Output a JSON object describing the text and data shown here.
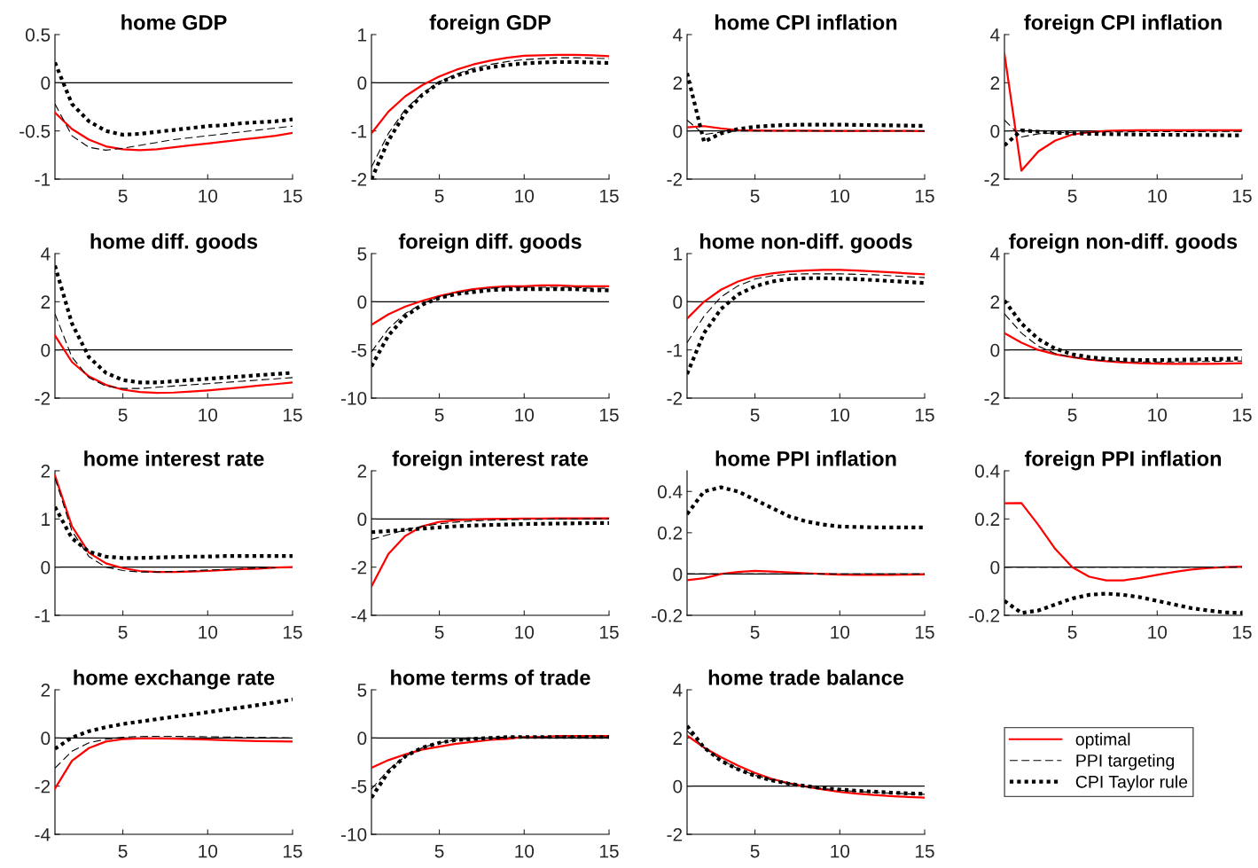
{
  "chart_data": [
    {
      "type": "line",
      "title": "home GDP",
      "x": [
        1,
        2,
        3,
        4,
        5,
        6,
        7,
        8,
        9,
        10,
        11,
        12,
        13,
        14,
        15
      ],
      "xlim": [
        1,
        15
      ],
      "xticks": [
        5,
        10,
        15
      ],
      "ylim": [
        -1,
        0.5
      ],
      "yticks": [
        -1,
        -0.5,
        0,
        0.5
      ],
      "grid": false,
      "legend": false,
      "ref_lines": [
        {
          "axis": "y",
          "value": 0,
          "color": "#000000"
        }
      ],
      "series": [
        {
          "color": "#ff0000",
          "line_style": "solid",
          "values": [
            -0.31,
            -0.48,
            -0.59,
            -0.66,
            -0.69,
            -0.7,
            -0.69,
            -0.67,
            -0.65,
            -0.63,
            -0.61,
            -0.59,
            -0.57,
            -0.55,
            -0.52
          ]
        },
        {
          "color": "#000000",
          "line_style": "dashed",
          "values": [
            -0.22,
            -0.55,
            -0.67,
            -0.7,
            -0.68,
            -0.65,
            -0.62,
            -0.59,
            -0.57,
            -0.55,
            -0.53,
            -0.51,
            -0.49,
            -0.47,
            -0.45
          ]
        },
        {
          "color": "#000000",
          "line_style": "dotted",
          "values": [
            0.21,
            -0.22,
            -0.4,
            -0.5,
            -0.54,
            -0.53,
            -0.51,
            -0.49,
            -0.47,
            -0.45,
            -0.44,
            -0.42,
            -0.41,
            -0.4,
            -0.38
          ]
        }
      ]
    },
    {
      "type": "line",
      "title": "foreign GDP",
      "x": [
        1,
        2,
        3,
        4,
        5,
        6,
        7,
        8,
        9,
        10,
        11,
        12,
        13,
        14,
        15
      ],
      "xlim": [
        1,
        15
      ],
      "xticks": [
        5,
        10,
        15
      ],
      "ylim": [
        -2,
        1
      ],
      "yticks": [
        -2,
        -1,
        0,
        1
      ],
      "grid": false,
      "legend": false,
      "ref_lines": [
        {
          "axis": "y",
          "value": 0,
          "color": "#000000"
        }
      ],
      "series": [
        {
          "color": "#ff0000",
          "line_style": "solid",
          "values": [
            -1.05,
            -0.6,
            -0.28,
            -0.05,
            0.13,
            0.27,
            0.38,
            0.46,
            0.52,
            0.56,
            0.57,
            0.58,
            0.58,
            0.57,
            0.55
          ]
        },
        {
          "color": "#000000",
          "line_style": "dashed",
          "values": [
            -1.75,
            -1.05,
            -0.55,
            -0.22,
            0.02,
            0.18,
            0.3,
            0.38,
            0.44,
            0.48,
            0.5,
            0.52,
            0.52,
            0.51,
            0.5
          ]
        },
        {
          "color": "#000000",
          "line_style": "dotted",
          "values": [
            -2.0,
            -1.2,
            -0.62,
            -0.25,
            0.0,
            0.15,
            0.25,
            0.32,
            0.37,
            0.4,
            0.42,
            0.43,
            0.43,
            0.42,
            0.41
          ]
        }
      ]
    },
    {
      "type": "line",
      "title": "home CPI inflation",
      "x": [
        1,
        2,
        3,
        4,
        5,
        6,
        7,
        8,
        9,
        10,
        11,
        12,
        13,
        14,
        15
      ],
      "xlim": [
        1,
        15
      ],
      "xticks": [
        5,
        10,
        15
      ],
      "ylim": [
        -2,
        4
      ],
      "yticks": [
        -2,
        0,
        2,
        4
      ],
      "grid": false,
      "legend": false,
      "ref_lines": [
        {
          "axis": "y",
          "value": 0,
          "color": "#000000"
        }
      ],
      "series": [
        {
          "color": "#ff0000",
          "line_style": "solid",
          "values": [
            0.15,
            0.2,
            0.1,
            0.03,
            0.02,
            0.01,
            0.01,
            0.01,
            0.0,
            0.0,
            0.0,
            0.0,
            0.0,
            0.0,
            -0.01
          ]
        },
        {
          "color": "#000000",
          "line_style": "dashed",
          "values": [
            0.45,
            -0.15,
            -0.05,
            0.0,
            0.0,
            0.0,
            0.0,
            0.0,
            0.0,
            0.0,
            0.0,
            0.0,
            0.0,
            0.0,
            0.0
          ]
        },
        {
          "color": "#000000",
          "line_style": "dotted",
          "values": [
            2.4,
            -0.45,
            -0.1,
            0.08,
            0.17,
            0.22,
            0.25,
            0.26,
            0.26,
            0.26,
            0.25,
            0.24,
            0.23,
            0.22,
            0.21
          ]
        }
      ]
    },
    {
      "type": "line",
      "title": "foreign CPI inflation",
      "x": [
        1,
        2,
        3,
        4,
        5,
        6,
        7,
        8,
        9,
        10,
        11,
        12,
        13,
        14,
        15
      ],
      "xlim": [
        1,
        15
      ],
      "xticks": [
        5,
        10,
        15
      ],
      "ylim": [
        -2,
        4
      ],
      "yticks": [
        -2,
        0,
        2,
        4
      ],
      "grid": false,
      "legend": false,
      "ref_lines": [
        {
          "axis": "y",
          "value": 0,
          "color": "#000000"
        }
      ],
      "series": [
        {
          "color": "#ff0000",
          "line_style": "solid",
          "values": [
            3.2,
            -1.65,
            -0.85,
            -0.4,
            -0.15,
            -0.05,
            0.0,
            0.02,
            0.03,
            0.03,
            0.03,
            0.03,
            0.03,
            0.03,
            0.03
          ]
        },
        {
          "color": "#000000",
          "line_style": "dashed",
          "values": [
            0.45,
            -0.25,
            -0.12,
            -0.08,
            -0.06,
            -0.05,
            -0.04,
            -0.04,
            -0.03,
            -0.03,
            -0.03,
            -0.03,
            -0.02,
            -0.02,
            -0.02
          ]
        },
        {
          "color": "#000000",
          "line_style": "dotted",
          "values": [
            -0.6,
            0.02,
            -0.03,
            -0.08,
            -0.1,
            -0.12,
            -0.13,
            -0.14,
            -0.15,
            -0.16,
            -0.16,
            -0.17,
            -0.17,
            -0.18,
            -0.18
          ]
        }
      ]
    },
    {
      "type": "line",
      "title": "home diff. goods",
      "x": [
        1,
        2,
        3,
        4,
        5,
        6,
        7,
        8,
        9,
        10,
        11,
        12,
        13,
        14,
        15
      ],
      "xlim": [
        1,
        15
      ],
      "xticks": [
        5,
        10,
        15
      ],
      "ylim": [
        -2,
        4
      ],
      "yticks": [
        -2,
        0,
        2,
        4
      ],
      "grid": false,
      "legend": false,
      "ref_lines": [
        {
          "axis": "y",
          "value": 0,
          "color": "#000000"
        }
      ],
      "series": [
        {
          "color": "#ff0000",
          "line_style": "solid",
          "values": [
            0.6,
            -0.5,
            -1.1,
            -1.45,
            -1.65,
            -1.75,
            -1.78,
            -1.77,
            -1.73,
            -1.68,
            -1.62,
            -1.55,
            -1.48,
            -1.42,
            -1.35
          ]
        },
        {
          "color": "#000000",
          "line_style": "dashed",
          "values": [
            1.5,
            -0.3,
            -1.15,
            -1.5,
            -1.6,
            -1.6,
            -1.55,
            -1.5,
            -1.45,
            -1.4,
            -1.35,
            -1.3,
            -1.25,
            -1.2,
            -1.15
          ]
        },
        {
          "color": "#000000",
          "line_style": "dotted",
          "values": [
            3.5,
            1.1,
            -0.3,
            -0.95,
            -1.25,
            -1.35,
            -1.35,
            -1.3,
            -1.25,
            -1.2,
            -1.15,
            -1.1,
            -1.05,
            -1.0,
            -0.95
          ]
        }
      ]
    },
    {
      "type": "line",
      "title": "foreign diff. goods",
      "x": [
        1,
        2,
        3,
        4,
        5,
        6,
        7,
        8,
        9,
        10,
        11,
        12,
        13,
        14,
        15
      ],
      "xlim": [
        1,
        15
      ],
      "xticks": [
        5,
        10,
        15
      ],
      "ylim": [
        -10,
        5
      ],
      "yticks": [
        -10,
        -5,
        0,
        5
      ],
      "grid": false,
      "legend": false,
      "ref_lines": [
        {
          "axis": "y",
          "value": 0,
          "color": "#000000"
        }
      ],
      "series": [
        {
          "color": "#ff0000",
          "line_style": "solid",
          "values": [
            -2.4,
            -1.3,
            -0.5,
            0.1,
            0.6,
            1.0,
            1.3,
            1.5,
            1.6,
            1.6,
            1.7,
            1.7,
            1.6,
            1.6,
            1.6
          ]
        },
        {
          "color": "#000000",
          "line_style": "dashed",
          "values": [
            -5.2,
            -2.8,
            -1.2,
            -0.2,
            0.5,
            0.9,
            1.2,
            1.4,
            1.5,
            1.5,
            1.5,
            1.5,
            1.5,
            1.4,
            1.4
          ]
        },
        {
          "color": "#000000",
          "line_style": "dotted",
          "values": [
            -6.7,
            -3.5,
            -1.5,
            -0.3,
            0.4,
            0.8,
            1.0,
            1.2,
            1.3,
            1.3,
            1.3,
            1.3,
            1.3,
            1.2,
            1.2
          ]
        }
      ]
    },
    {
      "type": "line",
      "title": "home non-diff. goods",
      "x": [
        1,
        2,
        3,
        4,
        5,
        6,
        7,
        8,
        9,
        10,
        11,
        12,
        13,
        14,
        15
      ],
      "xlim": [
        1,
        15
      ],
      "xticks": [
        5,
        10,
        15
      ],
      "ylim": [
        -2,
        1
      ],
      "yticks": [
        -2,
        -1,
        0,
        1
      ],
      "grid": false,
      "legend": false,
      "ref_lines": [
        {
          "axis": "y",
          "value": 0,
          "color": "#000000"
        }
      ],
      "series": [
        {
          "color": "#ff0000",
          "line_style": "solid",
          "values": [
            -0.35,
            0.0,
            0.25,
            0.42,
            0.53,
            0.59,
            0.63,
            0.65,
            0.66,
            0.66,
            0.65,
            0.63,
            0.61,
            0.59,
            0.57
          ]
        },
        {
          "color": "#000000",
          "line_style": "dashed",
          "values": [
            -0.85,
            -0.3,
            0.1,
            0.33,
            0.47,
            0.54,
            0.57,
            0.58,
            0.58,
            0.58,
            0.57,
            0.56,
            0.54,
            0.52,
            0.5
          ]
        },
        {
          "color": "#000000",
          "line_style": "dotted",
          "values": [
            -1.5,
            -0.65,
            -0.15,
            0.15,
            0.32,
            0.42,
            0.47,
            0.49,
            0.49,
            0.48,
            0.47,
            0.45,
            0.43,
            0.41,
            0.39
          ]
        }
      ]
    },
    {
      "type": "line",
      "title": "foreign non-diff. goods",
      "x": [
        1,
        2,
        3,
        4,
        5,
        6,
        7,
        8,
        9,
        10,
        11,
        12,
        13,
        14,
        15
      ],
      "xlim": [
        1,
        15
      ],
      "xticks": [
        5,
        10,
        15
      ],
      "ylim": [
        -2,
        4
      ],
      "yticks": [
        -2,
        0,
        2,
        4
      ],
      "grid": false,
      "legend": false,
      "ref_lines": [
        {
          "axis": "y",
          "value": 0,
          "color": "#000000"
        }
      ],
      "series": [
        {
          "color": "#ff0000",
          "line_style": "solid",
          "values": [
            0.7,
            0.3,
            0.0,
            -0.18,
            -0.3,
            -0.4,
            -0.47,
            -0.52,
            -0.55,
            -0.57,
            -0.58,
            -0.58,
            -0.58,
            -0.57,
            -0.55
          ]
        },
        {
          "color": "#000000",
          "line_style": "dashed",
          "values": [
            1.5,
            0.7,
            0.15,
            -0.15,
            -0.3,
            -0.4,
            -0.45,
            -0.48,
            -0.5,
            -0.5,
            -0.5,
            -0.49,
            -0.48,
            -0.47,
            -0.46
          ]
        },
        {
          "color": "#000000",
          "line_style": "dotted",
          "values": [
            2.05,
            1.1,
            0.45,
            0.05,
            -0.18,
            -0.3,
            -0.37,
            -0.4,
            -0.42,
            -0.42,
            -0.41,
            -0.4,
            -0.38,
            -0.37,
            -0.35
          ]
        }
      ]
    },
    {
      "type": "line",
      "title": "home interest rate",
      "x": [
        1,
        2,
        3,
        4,
        5,
        6,
        7,
        8,
        9,
        10,
        11,
        12,
        13,
        14,
        15
      ],
      "xlim": [
        1,
        15
      ],
      "xticks": [
        5,
        10,
        15
      ],
      "ylim": [
        -1,
        2
      ],
      "yticks": [
        -1,
        0,
        1,
        2
      ],
      "grid": false,
      "legend": false,
      "ref_lines": [
        {
          "axis": "y",
          "value": 0,
          "color": "#000000"
        }
      ],
      "series": [
        {
          "color": "#ff0000",
          "line_style": "solid",
          "values": [
            1.9,
            0.85,
            0.3,
            0.08,
            -0.02,
            -0.08,
            -0.1,
            -0.1,
            -0.09,
            -0.08,
            -0.06,
            -0.04,
            -0.03,
            -0.01,
            0.0
          ]
        },
        {
          "color": "#000000",
          "line_style": "dashed",
          "values": [
            1.85,
            0.75,
            0.22,
            0.0,
            -0.07,
            -0.1,
            -0.1,
            -0.09,
            -0.08,
            -0.06,
            -0.05,
            -0.03,
            -0.02,
            -0.01,
            null
          ]
        },
        {
          "color": "#000000",
          "line_style": "dotted",
          "values": [
            1.25,
            0.6,
            0.32,
            0.22,
            0.19,
            0.19,
            0.2,
            0.21,
            0.22,
            0.22,
            0.23,
            0.23,
            0.23,
            0.23,
            0.23
          ]
        }
      ]
    },
    {
      "type": "line",
      "title": "foreign interest rate",
      "x": [
        1,
        2,
        3,
        4,
        5,
        6,
        7,
        8,
        9,
        10,
        11,
        12,
        13,
        14,
        15
      ],
      "xlim": [
        1,
        15
      ],
      "xticks": [
        5,
        10,
        15
      ],
      "ylim": [
        -4,
        2
      ],
      "yticks": [
        -4,
        -2,
        0,
        2
      ],
      "grid": false,
      "legend": false,
      "ref_lines": [
        {
          "axis": "y",
          "value": 0,
          "color": "#000000"
        }
      ],
      "series": [
        {
          "color": "#ff0000",
          "line_style": "solid",
          "values": [
            -2.8,
            -1.45,
            -0.7,
            -0.3,
            -0.12,
            -0.05,
            -0.02,
            0.0,
            0.01,
            0.02,
            0.02,
            0.03,
            0.03,
            0.03,
            0.03
          ]
        },
        {
          "color": "#000000",
          "line_style": "dashed",
          "values": [
            -0.85,
            -0.65,
            -0.45,
            -0.3,
            -0.2,
            -0.13,
            -0.08,
            -0.05,
            -0.03,
            -0.02,
            -0.01,
            0.0,
            0.0,
            0.01,
            0.01
          ]
        },
        {
          "color": "#000000",
          "line_style": "dotted",
          "values": [
            -0.55,
            -0.5,
            -0.45,
            -0.4,
            -0.35,
            -0.3,
            -0.27,
            -0.25,
            -0.23,
            -0.21,
            -0.2,
            -0.19,
            -0.18,
            -0.17,
            -0.17
          ]
        }
      ]
    },
    {
      "type": "line",
      "title": "home PPI inflation",
      "x": [
        1,
        2,
        3,
        4,
        5,
        6,
        7,
        8,
        9,
        10,
        11,
        12,
        13,
        14,
        15
      ],
      "xlim": [
        1,
        15
      ],
      "xticks": [
        5,
        10,
        15
      ],
      "ylim": [
        -0.2,
        0.5
      ],
      "yticks": [
        -0.2,
        0,
        0.2,
        0.4
      ],
      "grid": false,
      "legend": false,
      "ref_lines": [
        {
          "axis": "y",
          "value": 0,
          "color": "#000000"
        }
      ],
      "series": [
        {
          "color": "#ff0000",
          "line_style": "solid",
          "values": [
            -0.03,
            -0.02,
            0.0,
            0.01,
            0.015,
            0.012,
            0.008,
            0.004,
            0.0,
            -0.003,
            -0.004,
            -0.004,
            -0.004,
            -0.003,
            -0.002
          ]
        },
        {
          "color": "#000000",
          "line_style": "dashed",
          "values": [
            0,
            0,
            0,
            0,
            0,
            0,
            0,
            0,
            0,
            0,
            0,
            0,
            0,
            0,
            0
          ]
        },
        {
          "color": "#000000",
          "line_style": "dotted",
          "values": [
            0.29,
            0.4,
            0.42,
            0.4,
            0.36,
            0.32,
            0.28,
            0.255,
            0.24,
            0.23,
            0.228,
            0.226,
            0.226,
            0.226,
            0.226
          ]
        }
      ]
    },
    {
      "type": "line",
      "title": "foreign PPI inflation",
      "x": [
        1,
        2,
        3,
        4,
        5,
        6,
        7,
        8,
        9,
        10,
        11,
        12,
        13,
        14,
        15
      ],
      "xlim": [
        1,
        15
      ],
      "xticks": [
        5,
        10,
        15
      ],
      "ylim": [
        -0.2,
        0.4
      ],
      "yticks": [
        -0.2,
        0,
        0.2,
        0.4
      ],
      "grid": false,
      "legend": false,
      "ref_lines": [
        {
          "axis": "y",
          "value": 0,
          "color": "#000000"
        }
      ],
      "series": [
        {
          "color": "#ff0000",
          "line_style": "solid",
          "values": [
            0.265,
            0.266,
            0.175,
            0.075,
            0.0,
            -0.04,
            -0.055,
            -0.055,
            -0.045,
            -0.032,
            -0.02,
            -0.01,
            -0.004,
            0.0,
            0.002
          ]
        },
        {
          "color": "#000000",
          "line_style": "dashed",
          "values": [
            0,
            0,
            0,
            0,
            0,
            0,
            0,
            0,
            0,
            0,
            0,
            0,
            0,
            0,
            0
          ]
        },
        {
          "color": "#000000",
          "line_style": "dotted",
          "values": [
            -0.14,
            -0.19,
            -0.18,
            -0.155,
            -0.13,
            -0.115,
            -0.11,
            -0.115,
            -0.125,
            -0.14,
            -0.155,
            -0.17,
            -0.18,
            -0.188,
            -0.19
          ]
        }
      ]
    },
    {
      "type": "line",
      "title": "home exchange rate",
      "x": [
        1,
        2,
        3,
        4,
        5,
        6,
        7,
        8,
        9,
        10,
        11,
        12,
        13,
        14,
        15
      ],
      "xlim": [
        1,
        15
      ],
      "xticks": [
        5,
        10,
        15
      ],
      "ylim": [
        -4,
        2
      ],
      "yticks": [
        -4,
        -2,
        0,
        2
      ],
      "grid": false,
      "legend": false,
      "ref_lines": [
        {
          "axis": "y",
          "value": 0,
          "color": "#000000"
        }
      ],
      "series": [
        {
          "color": "#ff0000",
          "line_style": "solid",
          "values": [
            -2.1,
            -0.95,
            -0.42,
            -0.15,
            -0.05,
            -0.02,
            -0.02,
            -0.03,
            -0.05,
            -0.07,
            -0.09,
            -0.11,
            -0.13,
            -0.14,
            -0.15
          ]
        },
        {
          "color": "#000000",
          "line_style": "dashed",
          "values": [
            -1.25,
            -0.55,
            -0.2,
            -0.05,
            0.03,
            0.06,
            0.07,
            0.07,
            0.06,
            0.05,
            0.04,
            0.03,
            0.02,
            0.01,
            0.0
          ]
        },
        {
          "color": "#000000",
          "line_style": "dotted",
          "values": [
            -0.45,
            0.02,
            0.28,
            0.45,
            0.58,
            0.68,
            0.78,
            0.88,
            0.97,
            1.07,
            1.17,
            1.27,
            1.37,
            1.48,
            1.6
          ]
        }
      ]
    },
    {
      "type": "line",
      "title": "home terms of trade",
      "x": [
        1,
        2,
        3,
        4,
        5,
        6,
        7,
        8,
        9,
        10,
        11,
        12,
        13,
        14,
        15
      ],
      "xlim": [
        1,
        15
      ],
      "xticks": [
        5,
        10,
        15
      ],
      "ylim": [
        -10,
        5
      ],
      "yticks": [
        -10,
        -5,
        0,
        5
      ],
      "grid": false,
      "legend": false,
      "ref_lines": [
        {
          "axis": "y",
          "value": 0,
          "color": "#000000"
        }
      ],
      "series": [
        {
          "color": "#ff0000",
          "line_style": "solid",
          "values": [
            -3.1,
            -2.3,
            -1.7,
            -1.2,
            -0.9,
            -0.6,
            -0.4,
            -0.2,
            -0.1,
            0.1,
            0.1,
            0.2,
            0.2,
            0.2,
            0.2
          ]
        },
        {
          "color": "#000000",
          "line_style": "dashed",
          "values": [
            -5.3,
            -3.3,
            -1.9,
            -1.0,
            -0.5,
            -0.2,
            -0.1,
            0.0,
            0.1,
            0.1,
            0.1,
            0.1,
            0.1,
            0.1,
            0.1
          ]
        },
        {
          "color": "#000000",
          "line_style": "dotted",
          "values": [
            -6.2,
            -3.5,
            -1.9,
            -1.0,
            -0.5,
            -0.2,
            -0.1,
            0.0,
            0.1,
            0.1,
            0.1,
            0.1,
            0.1,
            0.1,
            0.1
          ]
        }
      ]
    },
    {
      "type": "line",
      "title": "home trade balance",
      "x": [
        1,
        2,
        3,
        4,
        5,
        6,
        7,
        8,
        9,
        10,
        11,
        12,
        13,
        14,
        15
      ],
      "xlim": [
        1,
        15
      ],
      "xticks": [
        5,
        10,
        15
      ],
      "ylim": [
        -2,
        4
      ],
      "yticks": [
        -2,
        0,
        2,
        4
      ],
      "grid": false,
      "legend": "right",
      "ref_lines": [
        {
          "axis": "y",
          "value": 0,
          "color": "#000000"
        }
      ],
      "series": [
        {
          "name": "optimal",
          "color": "#ff0000",
          "line_style": "solid",
          "values": [
            2.1,
            1.6,
            1.2,
            0.85,
            0.55,
            0.3,
            0.12,
            -0.02,
            -0.14,
            -0.24,
            -0.31,
            -0.37,
            -0.41,
            -0.45,
            -0.48
          ]
        },
        {
          "name": "PPI targeting",
          "color": "#000000",
          "line_style": "dashed",
          "values": [
            2.3,
            1.6,
            1.1,
            0.72,
            0.45,
            0.25,
            0.1,
            -0.02,
            -0.1,
            -0.17,
            -0.22,
            -0.26,
            -0.29,
            -0.32,
            -0.34
          ]
        },
        {
          "name": "CPI Taylor rule",
          "color": "#000000",
          "line_style": "dotted",
          "values": [
            2.5,
            1.6,
            1.05,
            0.7,
            0.43,
            0.24,
            0.1,
            0.0,
            -0.08,
            -0.14,
            -0.19,
            -0.23,
            -0.27,
            -0.3,
            -0.32
          ]
        }
      ]
    }
  ]
}
